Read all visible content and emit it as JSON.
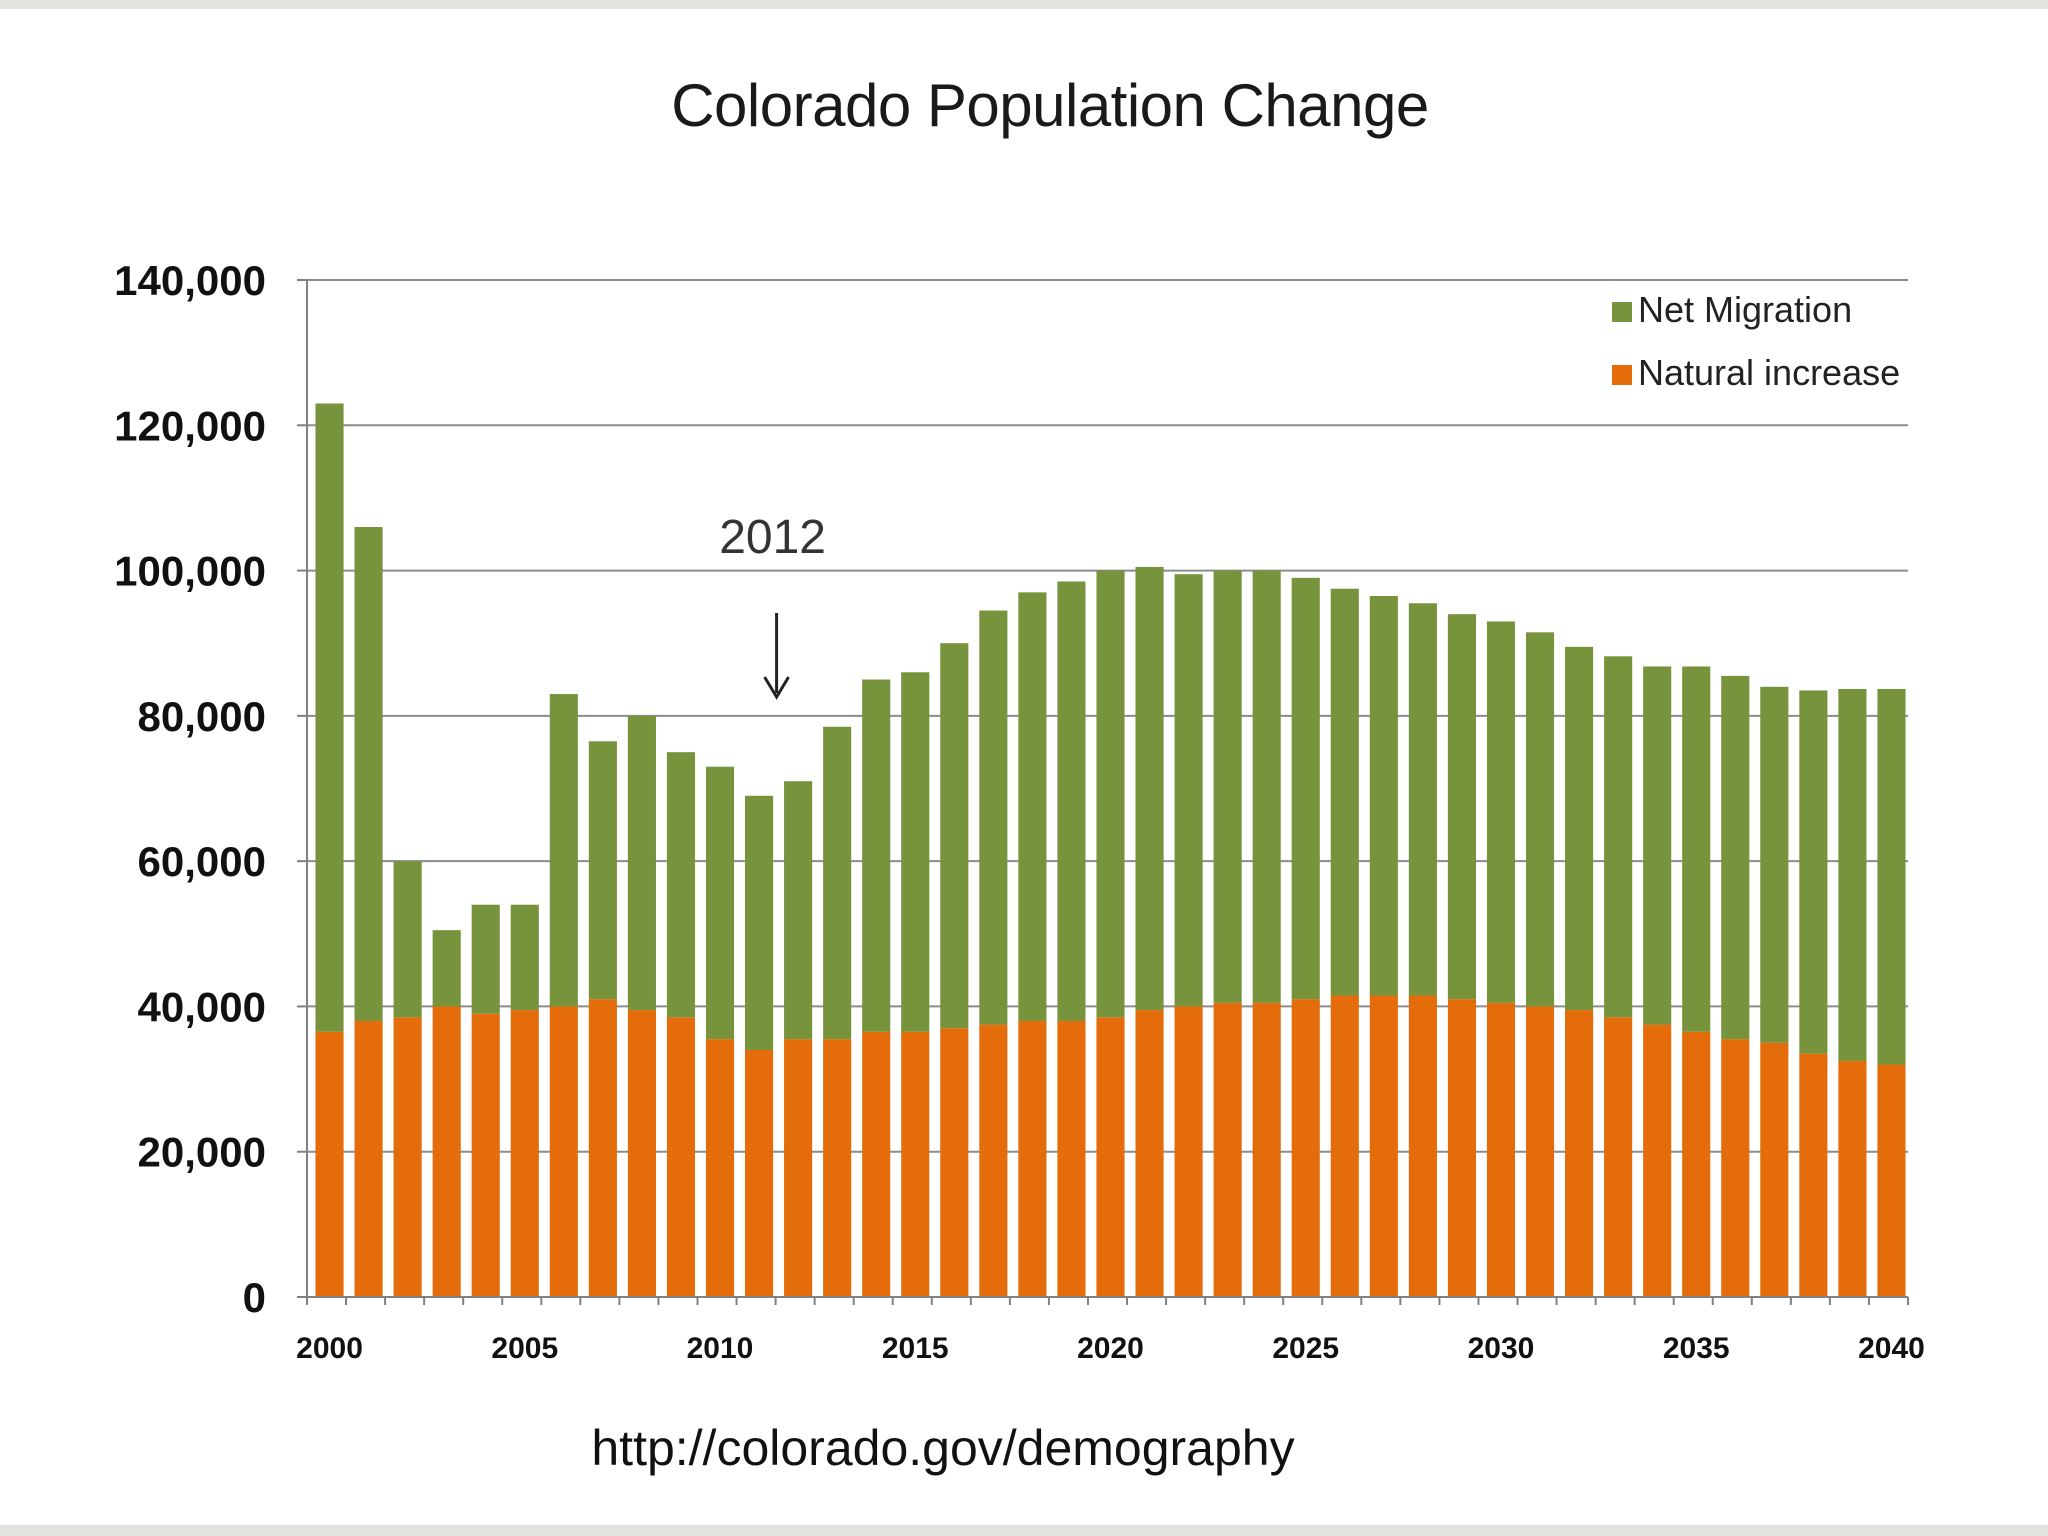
{
  "title": "Colorado Population Change",
  "source": "http://colorado.gov/demography",
  "colors": {
    "net_migration": "#77933c",
    "natural_increase": "#e46c0a",
    "grid": "#8c8c8c"
  },
  "chart_data": {
    "type": "bar",
    "stacked": true,
    "title": "Colorado Population Change",
    "xlabel": "",
    "ylabel": "",
    "ylim": [
      0,
      140000
    ],
    "yticks": [
      0,
      20000,
      40000,
      60000,
      80000,
      100000,
      120000,
      140000
    ],
    "ytick_labels": [
      "0",
      "20,000",
      "40,000",
      "60,000",
      "80,000",
      "100,000",
      "120,000",
      "140,000"
    ],
    "xtick_labels": [
      "2000",
      "2005",
      "2010",
      "2015",
      "2020",
      "2025",
      "2030",
      "2035",
      "2040"
    ],
    "grid": true,
    "legend_position": "top-right",
    "x": [
      2000,
      2001,
      2002,
      2003,
      2004,
      2005,
      2006,
      2007,
      2008,
      2009,
      2010,
      2011,
      2012,
      2013,
      2014,
      2015,
      2016,
      2017,
      2018,
      2019,
      2020,
      2021,
      2022,
      2023,
      2024,
      2025,
      2026,
      2027,
      2028,
      2029,
      2030,
      2031,
      2032,
      2033,
      2034,
      2035,
      2036,
      2037,
      2038,
      2039,
      2040
    ],
    "series": [
      {
        "name": "Natural increase",
        "values": [
          36500,
          38000,
          38500,
          40000,
          39000,
          39500,
          40000,
          41000,
          39500,
          38500,
          35500,
          34000,
          35500,
          35500,
          36500,
          36500,
          37000,
          37500,
          38000,
          38000,
          38500,
          39500,
          40000,
          40500,
          40500,
          41000,
          41500,
          41500,
          41500,
          41000,
          40500,
          40000,
          39500,
          38500,
          37500,
          36500,
          35500,
          35000,
          33500,
          32500,
          32000
        ]
      },
      {
        "name": "Net Migration",
        "values": [
          86500,
          68000,
          21500,
          10500,
          15000,
          14500,
          43000,
          35500,
          40500,
          36500,
          37500,
          35000,
          35500,
          43000,
          48500,
          49500,
          53000,
          57000,
          59000,
          60500,
          61500,
          61000,
          59500,
          59500,
          59500,
          58000,
          56000,
          55000,
          54000,
          53000,
          52500,
          51500,
          50000,
          49700,
          49300,
          50300,
          50000,
          49000,
          50000,
          51200,
          51700
        ]
      }
    ],
    "annotations": [
      {
        "text": "2012",
        "x": 2012,
        "arrow": "down"
      }
    ]
  }
}
